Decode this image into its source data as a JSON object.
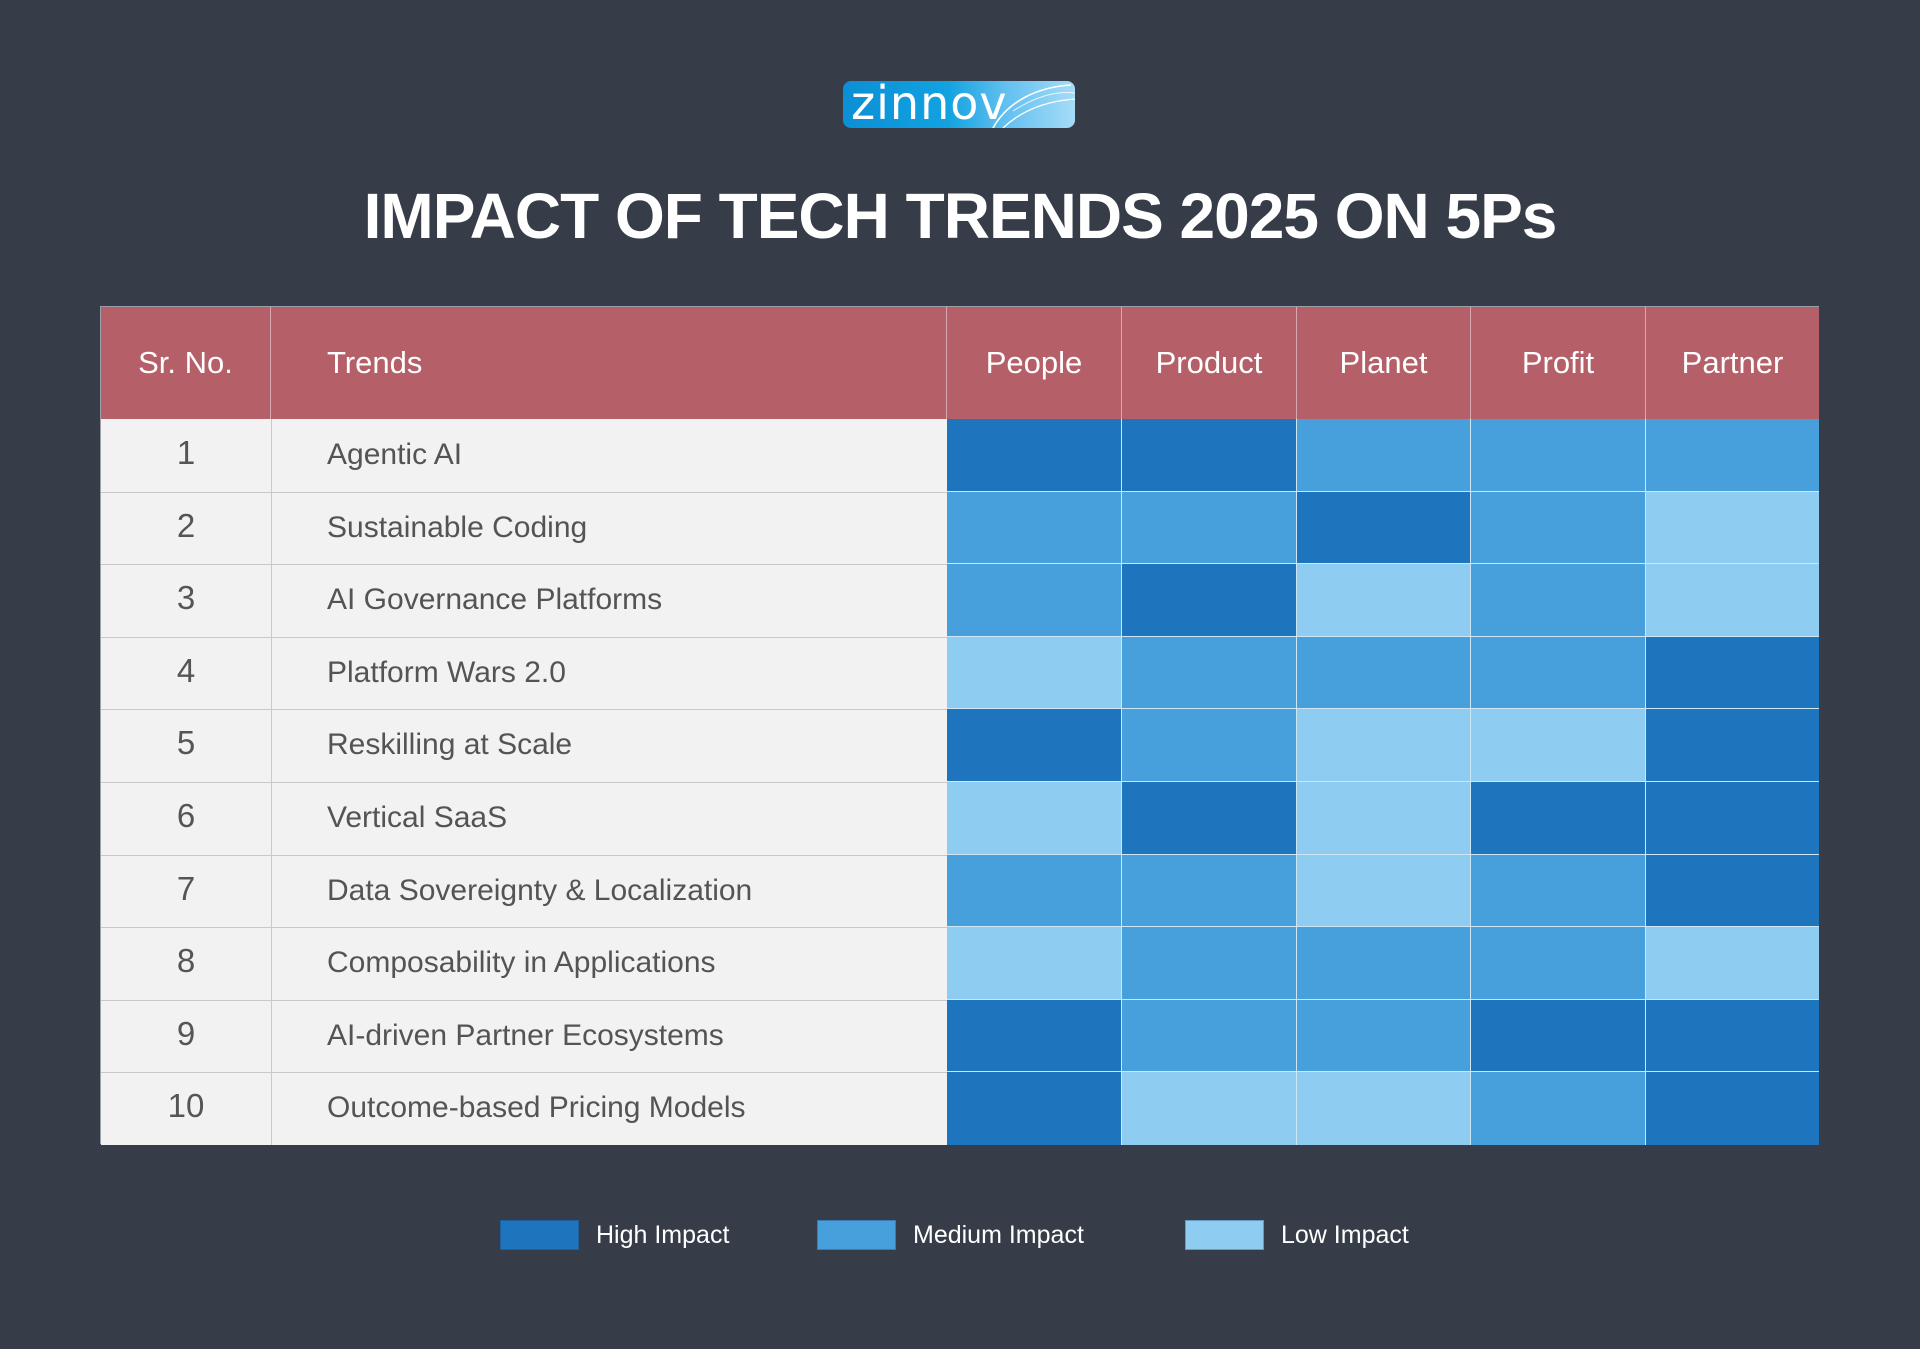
{
  "logo": {
    "text": "zinnov"
  },
  "title": "IMPACT OF TECH TRENDS 2025 ON 5Ps",
  "colors": {
    "background": "#373d48",
    "header": "#b55f68",
    "row": "#f2f2f2",
    "High": "#1e74bd",
    "Medium": "#479fdb",
    "Low": "#8ecdf1"
  },
  "chart_data": {
    "type": "heatmap",
    "title": "IMPACT OF TECH TRENDS 2025 ON 5Ps",
    "columns": [
      "Sr. No.",
      "Trends",
      "People",
      "Product",
      "Planet",
      "Profit",
      "Partner"
    ],
    "categories": [
      "People",
      "Product",
      "Planet",
      "Profit",
      "Partner"
    ],
    "rows": [
      {
        "sr": "1",
        "trend": "Agentic AI",
        "impact": [
          "High",
          "High",
          "Medium",
          "Medium",
          "Medium"
        ]
      },
      {
        "sr": "2",
        "trend": "Sustainable Coding",
        "impact": [
          "Medium",
          "Medium",
          "High",
          "Medium",
          "Low"
        ]
      },
      {
        "sr": "3",
        "trend": "AI Governance Platforms",
        "impact": [
          "Medium",
          "High",
          "Low",
          "Medium",
          "Low"
        ]
      },
      {
        "sr": "4",
        "trend": "Platform Wars 2.0",
        "impact": [
          "Low",
          "Medium",
          "Medium",
          "Medium",
          "High"
        ]
      },
      {
        "sr": "5",
        "trend": "Reskilling at Scale",
        "impact": [
          "High",
          "Medium",
          "Low",
          "Low",
          "High"
        ]
      },
      {
        "sr": "6",
        "trend": "Vertical SaaS",
        "impact": [
          "Low",
          "High",
          "Low",
          "High",
          "High"
        ]
      },
      {
        "sr": "7",
        "trend": "Data Sovereignty & Localization",
        "impact": [
          "Medium",
          "Medium",
          "Low",
          "Medium",
          "High"
        ]
      },
      {
        "sr": "8",
        "trend": "Composability in Applications",
        "impact": [
          "Low",
          "Medium",
          "Medium",
          "Medium",
          "Low"
        ]
      },
      {
        "sr": "9",
        "trend": "AI-driven Partner Ecosystems",
        "impact": [
          "High",
          "Medium",
          "Medium",
          "High",
          "High"
        ]
      },
      {
        "sr": "10",
        "trend": "Outcome-based Pricing Models",
        "impact": [
          "High",
          "Low",
          "Low",
          "Medium",
          "High"
        ]
      }
    ],
    "legend": [
      {
        "level": "High",
        "label": "High Impact"
      },
      {
        "level": "Medium",
        "label": "Medium Impact"
      },
      {
        "level": "Low",
        "label": "Low Impact"
      }
    ],
    "legend_position": "bottom-center"
  }
}
